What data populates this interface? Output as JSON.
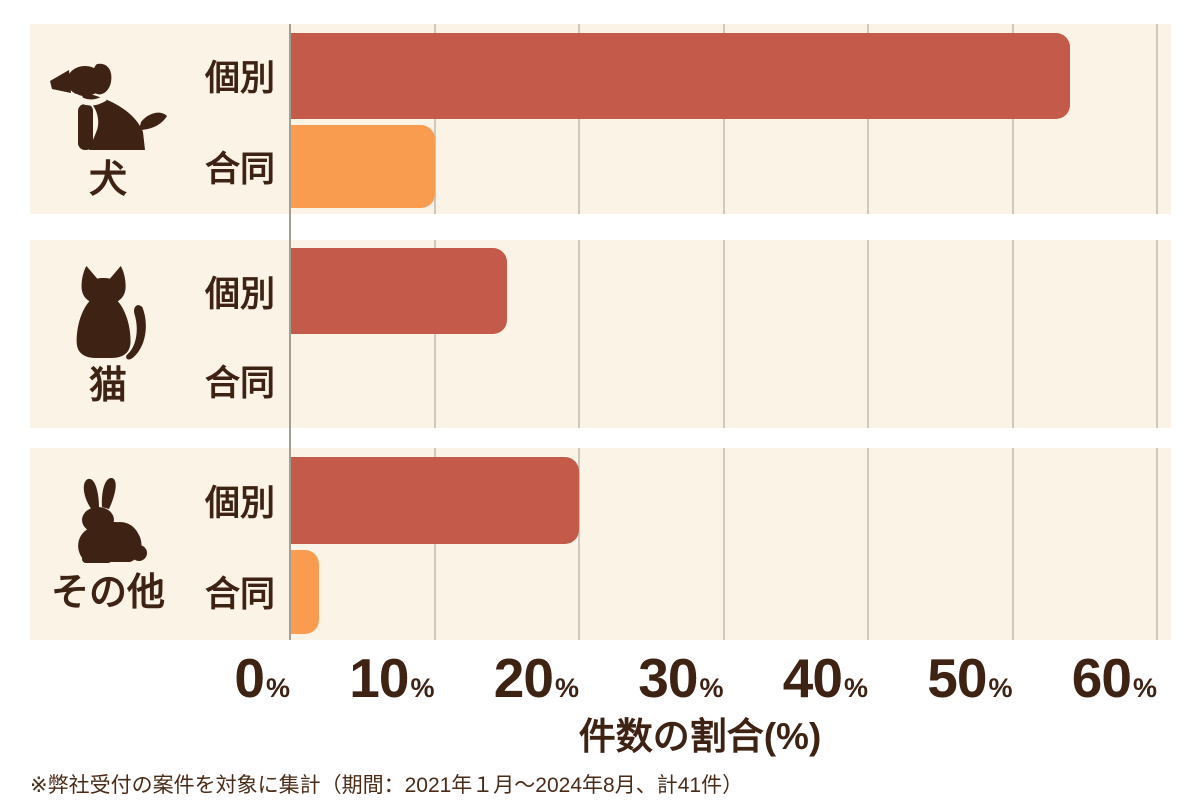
{
  "chart_data": {
    "type": "bar",
    "orientation": "horizontal",
    "xlabel": "件数の割合(%)",
    "x_unit": "%",
    "xlim": [
      0,
      60
    ],
    "x_ticks": [
      "0",
      "10",
      "20",
      "30",
      "40",
      "50",
      "60"
    ],
    "grid": true,
    "legend": "none",
    "groups": [
      {
        "category": "犬",
        "icon": "dog-icon",
        "series": [
          {
            "name": "個別",
            "value": 54
          },
          {
            "name": "合同",
            "value": 10
          }
        ]
      },
      {
        "category": "猫",
        "icon": "cat-icon",
        "series": [
          {
            "name": "個別",
            "value": 15
          },
          {
            "name": "合同",
            "value": 0
          }
        ]
      },
      {
        "category": "その他",
        "icon": "rabbit-icon",
        "series": [
          {
            "name": "個別",
            "value": 20
          },
          {
            "name": "合同",
            "value": 2
          }
        ]
      }
    ],
    "footnote": "※弊社受付の案件を対象に集計（期間：2021年１月～2024年8月、計41件）",
    "colors": {
      "kobetsu_bar": "#C45B4A",
      "godo_bar": "#F99C50",
      "panel_bg": "#FAF3E6",
      "text": "#3E2213",
      "gridline": "#CCCAC0",
      "axis_line": "#A19E96"
    }
  }
}
